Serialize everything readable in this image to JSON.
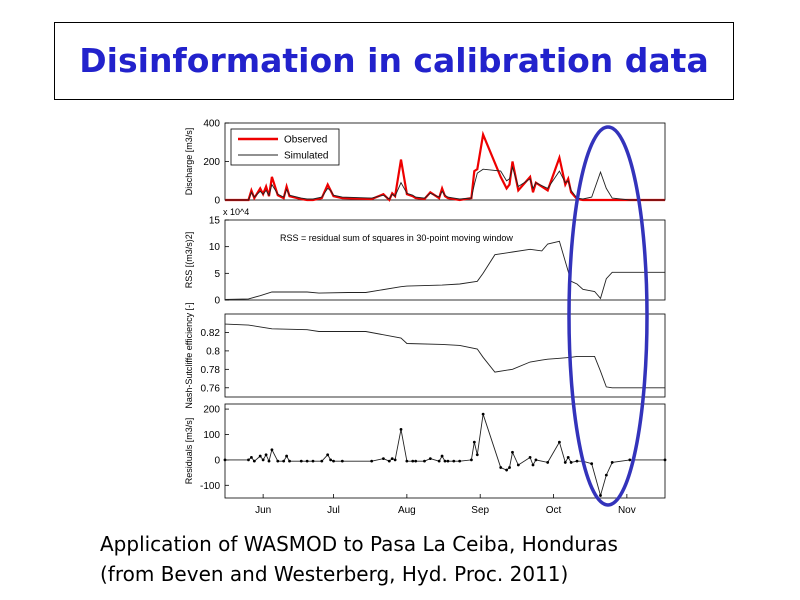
{
  "slide": {
    "title": "Disinformation in calibration data",
    "caption_line1": "Application of WASMOD to Pasa La Ceiba, Honduras",
    "caption_line2": "(from Beven and Westerberg, Hyd. Proc. 2011)"
  },
  "colors": {
    "title": "#2222cc",
    "observed": "#ee0000",
    "simulated": "#222222",
    "ellipse": "#3333bb"
  },
  "chart_data": [
    {
      "type": "line",
      "panel": "discharge",
      "ylabel": "Discharge [m3/s]",
      "ylim": [
        0,
        400
      ],
      "yticks": [
        0,
        200,
        400
      ],
      "legend": [
        "Observed",
        "Simulated"
      ],
      "legend_position": "top-left",
      "series": [
        {
          "name": "Observed",
          "x": [
            0,
            8,
            9,
            10,
            12,
            13,
            14,
            15,
            16,
            18,
            20,
            21,
            22,
            26,
            28,
            30,
            33,
            35,
            36,
            37,
            40,
            50,
            54,
            56,
            57,
            58,
            60,
            62,
            64,
            65,
            68,
            70,
            73,
            74,
            75,
            76,
            78,
            80,
            84,
            85,
            86,
            88,
            94,
            96,
            97,
            98,
            100,
            104,
            105,
            106,
            110,
            114,
            116,
            117,
            118,
            120,
            122,
            125,
            128,
            130,
            132,
            138,
            150
          ],
          "values": [
            0,
            0,
            50,
            10,
            60,
            30,
            70,
            20,
            120,
            25,
            10,
            70,
            20,
            5,
            0,
            0,
            10,
            80,
            50,
            20,
            10,
            5,
            30,
            0,
            35,
            20,
            210,
            30,
            20,
            10,
            5,
            40,
            10,
            60,
            20,
            10,
            5,
            0,
            10,
            150,
            160,
            340,
            120,
            60,
            80,
            200,
            50,
            120,
            40,
            90,
            50,
            220,
            80,
            110,
            40,
            5,
            0,
            0,
            0,
            0,
            0,
            0,
            0
          ]
        },
        {
          "name": "Simulated",
          "x": [
            0,
            8,
            9,
            10,
            12,
            13,
            14,
            15,
            16,
            18,
            20,
            21,
            22,
            26,
            28,
            30,
            33,
            35,
            36,
            37,
            40,
            50,
            54,
            56,
            57,
            58,
            60,
            62,
            64,
            65,
            68,
            70,
            73,
            74,
            75,
            76,
            78,
            80,
            84,
            85,
            86,
            88,
            94,
            96,
            97,
            98,
            100,
            104,
            105,
            106,
            110,
            114,
            116,
            117,
            118,
            120,
            122,
            125,
            128,
            130,
            132,
            138,
            150
          ],
          "values": [
            0,
            0,
            40,
            15,
            45,
            30,
            50,
            25,
            80,
            30,
            15,
            55,
            25,
            10,
            5,
            5,
            15,
            60,
            50,
            25,
            15,
            10,
            25,
            5,
            30,
            20,
            90,
            35,
            25,
            15,
            10,
            35,
            15,
            45,
            25,
            15,
            10,
            5,
            10,
            80,
            140,
            160,
            150,
            100,
            110,
            170,
            70,
            110,
            60,
            90,
            60,
            150,
            90,
            100,
            50,
            10,
            5,
            15,
            145,
            60,
            10,
            0,
            0
          ]
        }
      ]
    },
    {
      "type": "line",
      "panel": "rss",
      "ylabel": "RSS [(m3/s)2]",
      "scale_label": "x 10^4",
      "annotation": "RSS = residual sum of squares in 30-point moving window",
      "ylim": [
        0,
        15
      ],
      "yticks": [
        0,
        5,
        10,
        15
      ],
      "series": [
        {
          "name": "RSS",
          "x": [
            0,
            8,
            12,
            16,
            28,
            32,
            42,
            48,
            60,
            62,
            74,
            80,
            86,
            88,
            92,
            98,
            104,
            108,
            110,
            114,
            118,
            120,
            122,
            124,
            126,
            128,
            130,
            132,
            150
          ],
          "values": [
            0.1,
            0.2,
            0.8,
            1.5,
            1.5,
            1.3,
            1.4,
            1.4,
            2.5,
            2.6,
            2.8,
            3.0,
            3.5,
            5.0,
            8.5,
            9.0,
            9.5,
            9.2,
            10.5,
            11.0,
            3.5,
            3.0,
            2.0,
            1.8,
            1.6,
            0.3,
            4.0,
            5.2,
            5.2
          ]
        }
      ]
    },
    {
      "type": "line",
      "panel": "nash_sutcliffe",
      "ylabel": "Nash-Sutcliffe efficiency [-]",
      "ylim": [
        0.75,
        0.84
      ],
      "yticks": [
        0.76,
        0.78,
        0.8,
        0.82
      ],
      "series": [
        {
          "name": "Efficiency",
          "x": [
            0,
            8,
            12,
            16,
            28,
            32,
            42,
            48,
            60,
            62,
            74,
            80,
            86,
            88,
            92,
            98,
            104,
            108,
            110,
            114,
            118,
            120,
            122,
            124,
            126,
            128,
            130,
            132,
            150
          ],
          "values": [
            0.829,
            0.828,
            0.826,
            0.824,
            0.823,
            0.821,
            0.821,
            0.821,
            0.814,
            0.808,
            0.807,
            0.806,
            0.802,
            0.793,
            0.777,
            0.78,
            0.788,
            0.79,
            0.791,
            0.792,
            0.793,
            0.794,
            0.794,
            0.794,
            0.794,
            0.778,
            0.761,
            0.76,
            0.76
          ]
        }
      ]
    },
    {
      "type": "line",
      "panel": "residuals",
      "ylabel": "Residuals [m3/s]",
      "ylim": [
        -150,
        220
      ],
      "yticks": [
        -100,
        0,
        100,
        200
      ],
      "xlabels": [
        "Jun",
        "Jul",
        "Aug",
        "Sep",
        "Oct",
        "Nov"
      ],
      "series": [
        {
          "name": "Residuals",
          "x": [
            0,
            8,
            9,
            10,
            12,
            13,
            14,
            15,
            16,
            18,
            20,
            21,
            22,
            26,
            28,
            30,
            33,
            35,
            36,
            37,
            40,
            50,
            54,
            56,
            57,
            58,
            60,
            62,
            64,
            65,
            68,
            70,
            73,
            74,
            75,
            76,
            78,
            80,
            84,
            85,
            86,
            88,
            94,
            96,
            97,
            98,
            100,
            104,
            105,
            106,
            110,
            114,
            116,
            117,
            118,
            120,
            122,
            125,
            128,
            130,
            132,
            138,
            150
          ],
          "values": [
            0,
            0,
            10,
            -5,
            15,
            0,
            20,
            -5,
            40,
            -5,
            -5,
            15,
            -5,
            -5,
            -5,
            -5,
            -5,
            20,
            0,
            -5,
            -5,
            -5,
            5,
            -5,
            5,
            0,
            120,
            -5,
            -5,
            -5,
            -5,
            5,
            -5,
            15,
            -5,
            -5,
            -5,
            -5,
            0,
            70,
            20,
            180,
            -30,
            -40,
            -30,
            30,
            -20,
            10,
            -20,
            0,
            -10,
            70,
            -10,
            10,
            -10,
            -5,
            -5,
            -15,
            -140,
            -60,
            -10,
            0,
            0
          ]
        }
      ]
    }
  ]
}
